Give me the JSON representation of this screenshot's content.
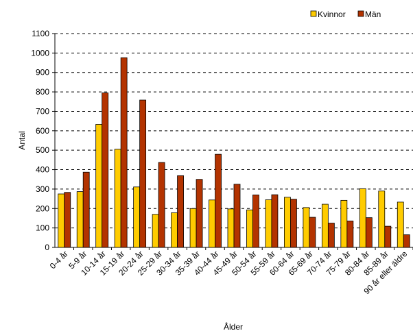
{
  "chart_data": {
    "type": "bar",
    "title": "",
    "xlabel": "Ålder",
    "ylabel": "Antal",
    "ylim": [
      0,
      1100
    ],
    "yticks": [
      0,
      100,
      200,
      300,
      400,
      500,
      600,
      700,
      800,
      900,
      1000,
      1100
    ],
    "grid": true,
    "legend": "top-right",
    "categories": [
      "0-4 år",
      "5-9 år",
      "10-14 år",
      "15-19 år",
      "20-24 år",
      "25-29 år",
      "30-34 år",
      "35-39 år",
      "40-44 år",
      "45-49 år",
      "50-54 år",
      "55-59 år",
      "60-64 år",
      "65-69 år",
      "70-74 år",
      "75-79 år",
      "80-84 år",
      "85-89 år",
      "90 år eller äldre"
    ],
    "series": [
      {
        "name": "Kvinnor",
        "color": "#FFCC00",
        "values": [
          275,
          287,
          633,
          505,
          311,
          170,
          178,
          200,
          244,
          198,
          193,
          245,
          258,
          205,
          222,
          242,
          302,
          290,
          233
        ]
      },
      {
        "name": "Män",
        "color": "#B33300",
        "values": [
          283,
          387,
          795,
          976,
          758,
          437,
          369,
          350,
          479,
          325,
          270,
          271,
          248,
          155,
          125,
          136,
          153,
          109,
          65
        ]
      }
    ]
  }
}
